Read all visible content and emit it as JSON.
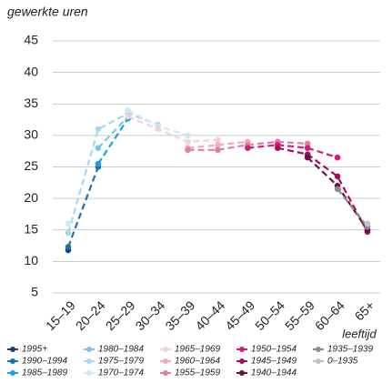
{
  "chart_data": {
    "type": "line",
    "y_label": "gewerkte uren",
    "x_label": "leeftijd",
    "categories": [
      "15–19",
      "20–24",
      "25–29",
      "30–34",
      "35–39",
      "40–44",
      "45–49",
      "50–54",
      "55–59",
      "60–64",
      "65+"
    ],
    "ylim": [
      5,
      45
    ],
    "yticks": [
      5,
      10,
      15,
      20,
      25,
      30,
      35,
      40,
      45
    ],
    "grid": true,
    "series": [
      {
        "name": "1995+",
        "color": "#1b3f73",
        "values": [
          11.8,
          null,
          null,
          null,
          null,
          null,
          null,
          null,
          null,
          null,
          null
        ]
      },
      {
        "name": "1990–1994",
        "color": "#1f6fb2",
        "values": [
          12.3,
          25,
          null,
          null,
          null,
          null,
          null,
          null,
          null,
          null,
          null
        ]
      },
      {
        "name": "1985–1989",
        "color": "#17a2e0",
        "values": [
          null,
          25.5,
          32.7,
          null,
          null,
          null,
          null,
          null,
          null,
          null,
          null
        ]
      },
      {
        "name": "1980–1984",
        "color": "#7cc5ea",
        "values": [
          null,
          28,
          33,
          null,
          null,
          null,
          null,
          null,
          null,
          null,
          null
        ]
      },
      {
        "name": "1975–1979",
        "color": "#a6d9f1",
        "values": [
          14.5,
          31,
          33.5,
          31.7,
          null,
          null,
          null,
          null,
          null,
          null,
          null
        ]
      },
      {
        "name": "1970–1974",
        "color": "#cde9f6",
        "values": [
          16,
          null,
          34,
          31.5,
          30,
          null,
          null,
          null,
          null,
          null,
          null
        ]
      },
      {
        "name": "1965–1969",
        "color": "#f5cfe0",
        "values": [
          null,
          null,
          33,
          31,
          29,
          29.3,
          null,
          null,
          null,
          null,
          null
        ]
      },
      {
        "name": "1960–1964",
        "color": "#f0a9c9",
        "values": [
          null,
          null,
          null,
          null,
          28,
          28.5,
          29,
          null,
          null,
          null,
          null
        ]
      },
      {
        "name": "1955–1959",
        "color": "#e77aab",
        "values": [
          null,
          null,
          null,
          null,
          27.7,
          27.7,
          28.5,
          29,
          28.7,
          null,
          null
        ]
      },
      {
        "name": "1950–1954",
        "color": "#d81b7b",
        "values": [
          null,
          null,
          null,
          null,
          null,
          null,
          28,
          28.5,
          28,
          26.5,
          null
        ]
      },
      {
        "name": "1945–1949",
        "color": "#a0105f",
        "values": [
          null,
          null,
          null,
          null,
          null,
          null,
          null,
          28,
          27,
          23.5,
          14.7
        ]
      },
      {
        "name": "1940–1944",
        "color": "#6a0f46",
        "values": [
          null,
          null,
          null,
          null,
          null,
          null,
          null,
          null,
          26.5,
          22,
          15
        ]
      },
      {
        "name": "1935–1939",
        "color": "#8c8c8c",
        "values": [
          null,
          null,
          null,
          null,
          null,
          null,
          null,
          null,
          null,
          21.5,
          15.5
        ]
      },
      {
        "name": "0–1935",
        "color": "#c2c2c2",
        "values": [
          null,
          null,
          null,
          null,
          null,
          null,
          null,
          null,
          null,
          null,
          16
        ]
      }
    ]
  }
}
